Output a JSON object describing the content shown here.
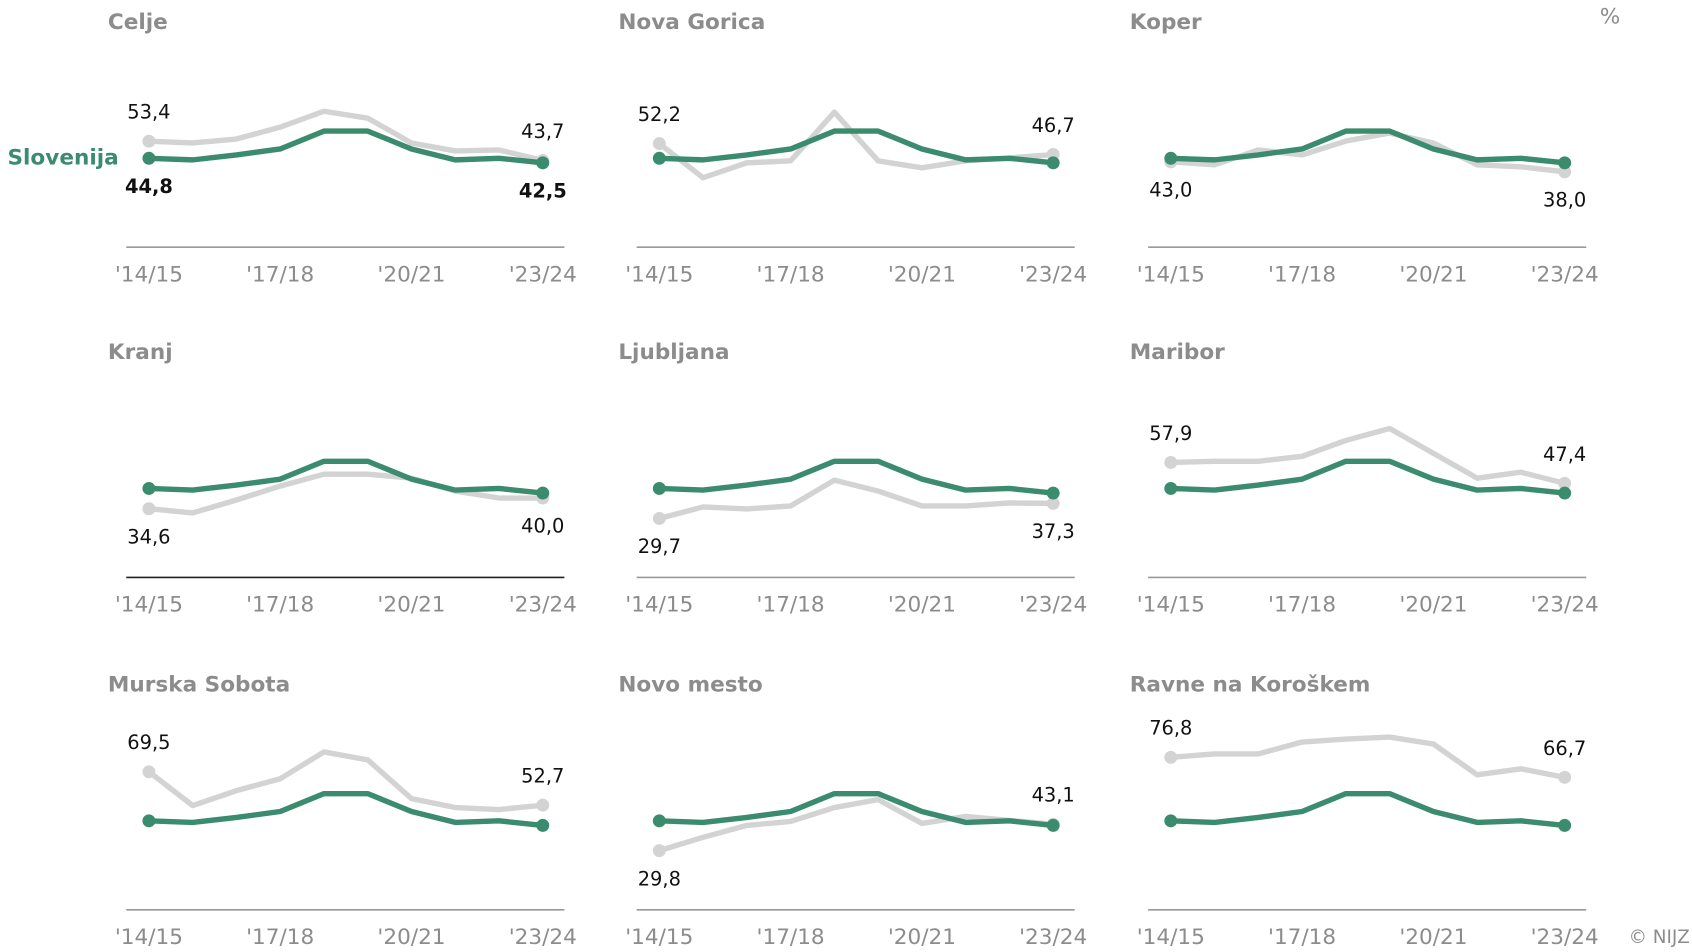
{
  "unit": "%",
  "source": "© NIJZ",
  "chart_data": [
    {
      "type": "line",
      "title": "Celje",
      "categories": [
        "'14/15",
        null,
        null,
        "'17/18",
        null,
        null,
        "'20/21",
        null,
        null,
        "'23/24"
      ],
      "ylim": [
        0,
        90
      ],
      "series": [
        {
          "color": "#d3d3d3",
          "values": [
            53.4,
            52.5,
            54.5,
            60.5,
            68.5,
            65,
            52.5,
            48.5,
            49,
            43.7
          ],
          "value_labels": [
            "53,4",
            null,
            null,
            null,
            null,
            null,
            null,
            null,
            null,
            "43,7"
          ]
        },
        {
          "name": "Slovenija",
          "color": "#3b8b6e",
          "values": [
            44.8,
            44.0,
            46.5,
            49.5,
            58.5,
            58.5,
            49.5,
            44.0,
            44.8,
            42.5
          ],
          "value_labels": [
            "44,8",
            null,
            null,
            null,
            null,
            null,
            null,
            null,
            null,
            "42,5"
          ]
        }
      ]
    },
    {
      "type": "line",
      "title": "Nova Gorica",
      "categories": [
        "'14/15",
        null,
        null,
        "'17/18",
        null,
        null,
        "'20/21",
        null,
        null,
        "'23/24"
      ],
      "ylim": [
        0,
        90
      ],
      "series": [
        {
          "color": "#d3d3d3",
          "values": [
            52.2,
            35,
            42.5,
            43.5,
            68,
            43.5,
            40,
            43.5,
            45,
            46.7
          ],
          "value_labels": [
            "52,2",
            null,
            null,
            null,
            null,
            null,
            null,
            null,
            null,
            "46,7"
          ]
        },
        {
          "color": "#3b8b6e",
          "values": [
            44.8,
            44.0,
            46.5,
            49.5,
            58.5,
            58.5,
            49.5,
            44.0,
            44.8,
            42.5
          ]
        }
      ]
    },
    {
      "type": "line",
      "title": "Koper",
      "categories": [
        "'14/15",
        null,
        null,
        "'17/18",
        null,
        null,
        "'20/21",
        null,
        null,
        "'23/24"
      ],
      "ylim": [
        0,
        90
      ],
      "series": [
        {
          "color": "#d3d3d3",
          "values": [
            43.0,
            41.5,
            49,
            46.5,
            53.5,
            57.5,
            52.5,
            41.5,
            40.5,
            38.0
          ],
          "value_labels": [
            "43,0",
            null,
            null,
            null,
            null,
            null,
            null,
            null,
            null,
            "38,0"
          ]
        },
        {
          "color": "#3b8b6e",
          "values": [
            44.8,
            44.0,
            46.5,
            49.5,
            58.5,
            58.5,
            49.5,
            44.0,
            44.8,
            42.5
          ]
        }
      ]
    },
    {
      "type": "line",
      "title": "Kranj",
      "categories": [
        "'14/15",
        null,
        null,
        "'17/18",
        null,
        null,
        "'20/21",
        null,
        null,
        "'23/24"
      ],
      "ylim": [
        0,
        90
      ],
      "series": [
        {
          "color": "#d3d3d3",
          "values": [
            34.6,
            32.5,
            39,
            46,
            52,
            52,
            50,
            43.5,
            40,
            40.0
          ],
          "value_labels": [
            "34,6",
            null,
            null,
            null,
            null,
            null,
            null,
            null,
            null,
            "40,0"
          ]
        },
        {
          "color": "#3b8b6e",
          "values": [
            44.8,
            44.0,
            46.5,
            49.5,
            58.5,
            58.5,
            49.5,
            44.0,
            44.8,
            42.5
          ]
        }
      ]
    },
    {
      "type": "line",
      "title": "Ljubljana",
      "categories": [
        "'14/15",
        null,
        null,
        "'17/18",
        null,
        null,
        "'20/21",
        null,
        null,
        "'23/24"
      ],
      "ylim": [
        0,
        90
      ],
      "series": [
        {
          "color": "#d3d3d3",
          "values": [
            29.7,
            35.5,
            34.5,
            36,
            49,
            43.5,
            36,
            36,
            37.5,
            37.3
          ],
          "value_labels": [
            "29,7",
            null,
            null,
            null,
            null,
            null,
            null,
            null,
            null,
            "37,3"
          ]
        },
        {
          "color": "#3b8b6e",
          "values": [
            44.8,
            44.0,
            46.5,
            49.5,
            58.5,
            58.5,
            49.5,
            44.0,
            44.8,
            42.5
          ]
        }
      ]
    },
    {
      "type": "line",
      "title": "Maribor",
      "categories": [
        "'14/15",
        null,
        null,
        "'17/18",
        null,
        null,
        "'20/21",
        null,
        null,
        "'23/24"
      ],
      "ylim": [
        0,
        90
      ],
      "series": [
        {
          "color": "#d3d3d3",
          "values": [
            57.9,
            58.5,
            58.5,
            61,
            69,
            75,
            62.5,
            50,
            53,
            47.4
          ],
          "value_labels": [
            "57,9",
            null,
            null,
            null,
            null,
            null,
            null,
            null,
            null,
            "47,4"
          ]
        },
        {
          "color": "#3b8b6e",
          "values": [
            44.8,
            44.0,
            46.5,
            49.5,
            58.5,
            58.5,
            49.5,
            44.0,
            44.8,
            42.5
          ]
        }
      ]
    },
    {
      "type": "line",
      "title": "Murska Sobota",
      "categories": [
        "'14/15",
        null,
        null,
        "'17/18",
        null,
        null,
        "'20/21",
        null,
        null,
        "'23/24"
      ],
      "ylim": [
        0,
        90
      ],
      "series": [
        {
          "color": "#d3d3d3",
          "values": [
            69.5,
            52.5,
            60,
            66,
            79.5,
            75.5,
            56,
            51.5,
            50.5,
            52.7
          ],
          "value_labels": [
            "69,5",
            null,
            null,
            null,
            null,
            null,
            null,
            null,
            null,
            "52,7"
          ]
        },
        {
          "color": "#3b8b6e",
          "values": [
            44.8,
            44.0,
            46.5,
            49.5,
            58.5,
            58.5,
            49.5,
            44.0,
            44.8,
            42.5
          ]
        }
      ]
    },
    {
      "type": "line",
      "title": "Novo mesto",
      "categories": [
        "'14/15",
        null,
        null,
        "'17/18",
        null,
        null,
        "'20/21",
        null,
        null,
        "'23/24"
      ],
      "ylim": [
        0,
        90
      ],
      "series": [
        {
          "color": "#d3d3d3",
          "values": [
            29.8,
            36.5,
            42.5,
            44.5,
            51.5,
            55.5,
            43.5,
            47,
            45,
            43.1
          ],
          "value_labels": [
            "29,8",
            null,
            null,
            null,
            null,
            null,
            null,
            null,
            null,
            "43,1"
          ]
        },
        {
          "color": "#3b8b6e",
          "values": [
            44.8,
            44.0,
            46.5,
            49.5,
            58.5,
            58.5,
            49.5,
            44.0,
            44.8,
            42.5
          ]
        }
      ]
    },
    {
      "type": "line",
      "title": "Ravne na Koroškem",
      "categories": [
        "'14/15",
        null,
        null,
        "'17/18",
        null,
        null,
        "'20/21",
        null,
        null,
        "'23/24"
      ],
      "ylim": [
        0,
        90
      ],
      "series": [
        {
          "color": "#d3d3d3",
          "values": [
            76.8,
            78.5,
            78.5,
            84.5,
            86,
            87,
            83.5,
            68,
            71,
            66.7
          ],
          "value_labels": [
            "76,8",
            null,
            null,
            null,
            null,
            null,
            null,
            null,
            null,
            "66,7"
          ]
        },
        {
          "color": "#3b8b6e",
          "values": [
            44.8,
            44.0,
            46.5,
            49.5,
            58.5,
            58.5,
            49.5,
            44.0,
            44.8,
            42.5
          ]
        }
      ]
    }
  ]
}
